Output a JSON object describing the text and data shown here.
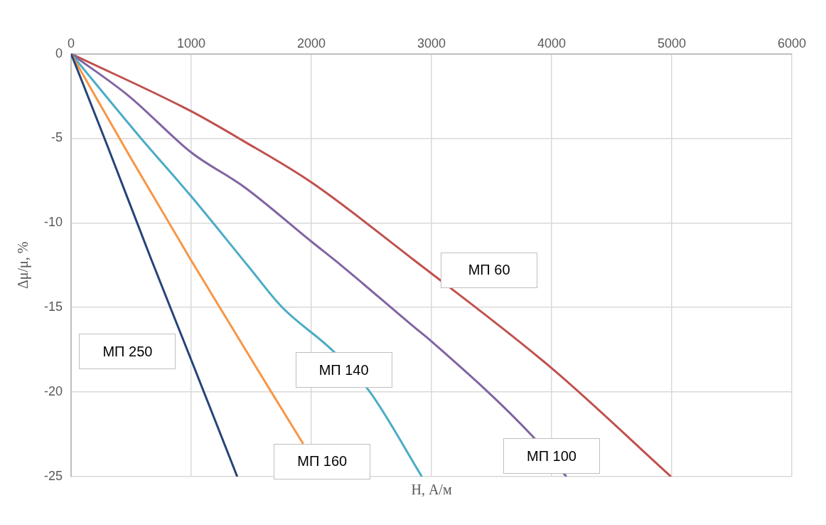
{
  "chart_data": {
    "type": "line",
    "xlabel": "H, А/м",
    "ylabel": "Δμ/μ, %",
    "xlim": [
      0,
      6000
    ],
    "xticks": [
      0,
      1000,
      2000,
      3000,
      4000,
      5000,
      6000
    ],
    "ylim": [
      -25,
      0
    ],
    "yticks": [
      -25,
      -20,
      -15,
      -10,
      -5,
      0
    ],
    "grid": true,
    "legend": false,
    "marker": "none",
    "line_style": "solid",
    "series": [
      {
        "name": "МП 250",
        "color": "#264478",
        "x": [
          0,
          300,
          667,
          1000,
          1383
        ],
        "values": [
          0,
          -5.4,
          -12.15,
          -18.1,
          -25
        ]
      },
      {
        "name": "МП 160",
        "color": "#f79646",
        "x": [
          0,
          500,
          994,
          1667,
          1932
        ],
        "values": [
          0,
          -6.2,
          -12.15,
          -20,
          -23.06
        ]
      },
      {
        "name": "МП 140",
        "color": "#4bacc6",
        "x": [
          0,
          562,
          1000,
          1475,
          1753,
          2185,
          2488,
          2920
        ],
        "values": [
          0,
          -4.83,
          -8.43,
          -12.56,
          -14.96,
          -17.6,
          -20,
          -25
        ]
      },
      {
        "name": "МП 100",
        "color": "#8064a2",
        "x": [
          0,
          481,
          1000,
          1444,
          2000,
          2247,
          2846,
          3000,
          3840,
          4123
        ],
        "values": [
          0,
          -2.5,
          -5.83,
          -7.89,
          -11.1,
          -12.5,
          -16.1,
          -17,
          -22.6,
          -25
        ]
      },
      {
        "name": "МП 60",
        "color": "#c0504d",
        "x": [
          0,
          1000,
          1426,
          2000,
          2846,
          3994,
          4994
        ],
        "values": [
          0,
          -3.4,
          -5.12,
          -7.6,
          -12.15,
          -18.55,
          -25
        ]
      }
    ]
  }
}
